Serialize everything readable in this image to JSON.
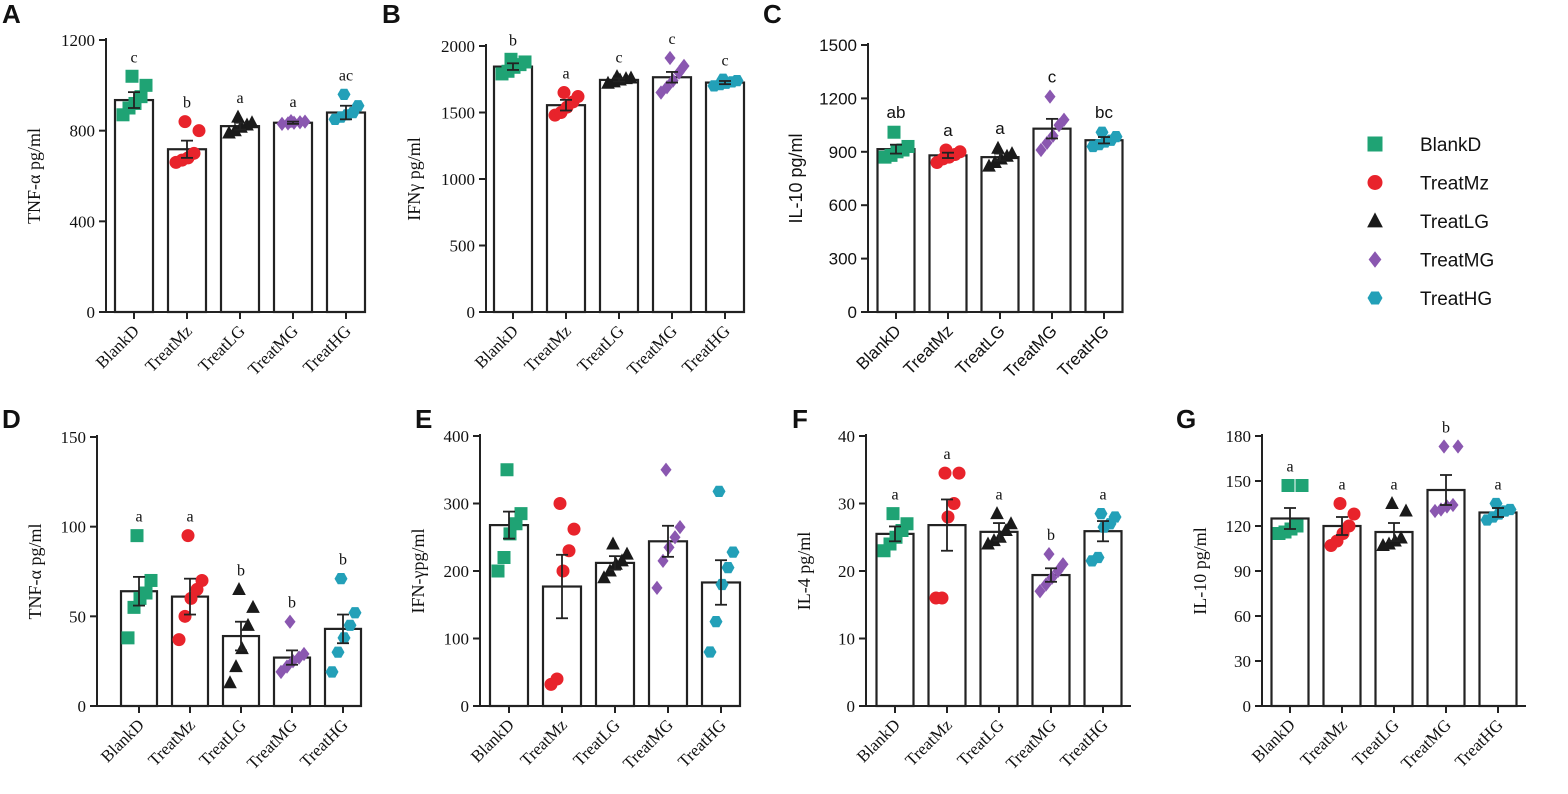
{
  "colors": {
    "BlankD": "#1fa374",
    "TreatMz": "#e8232b",
    "TreatLG": "#1a1a1a",
    "TreatMG": "#8a57b0",
    "TreatHG": "#23a0b8"
  },
  "legend": [
    {
      "label": "BlankD",
      "marker": "square"
    },
    {
      "label": "TreatMz",
      "marker": "circle"
    },
    {
      "label": "TreatLG",
      "marker": "triangle"
    },
    {
      "label": "TreatMG",
      "marker": "diamond"
    },
    {
      "label": "TreatHG",
      "marker": "hexagon"
    }
  ],
  "chart_data": [
    {
      "panel": "A",
      "type": "bar",
      "font": "serif",
      "ylabel": "TNF-α pg/ml",
      "ylim": [
        0,
        1200
      ],
      "yticks": [
        0,
        400,
        800,
        1200
      ],
      "categories": [
        "BlankD",
        "TreatMz",
        "TreatLG",
        "TreatMG",
        "TreatHG"
      ],
      "values": [
        935,
        718,
        820,
        835,
        880
      ],
      "errors": [
        35,
        38,
        15,
        5,
        30
      ],
      "letters": [
        "c",
        "b",
        "a",
        "a",
        "ac"
      ],
      "points": [
        [
          870,
          900,
          920,
          950,
          1000,
          1040
        ],
        [
          660,
          670,
          680,
          700,
          800,
          840
        ],
        [
          790,
          800,
          815,
          825,
          835,
          860
        ],
        [
          830,
          832,
          835,
          837,
          840,
          842
        ],
        [
          850,
          860,
          870,
          880,
          910,
          960
        ]
      ]
    },
    {
      "panel": "B",
      "type": "bar",
      "font": "serif",
      "ylabel": "IFNγ pg/ml",
      "ylim": [
        0,
        2000
      ],
      "yticks": [
        0,
        500,
        1000,
        1500,
        2000
      ],
      "categories": [
        "BlankD",
        "TreatMz",
        "TreatLG",
        "TreatMG",
        "TreatHG"
      ],
      "values": [
        1845,
        1555,
        1745,
        1765,
        1725
      ],
      "errors": [
        25,
        40,
        12,
        40,
        12
      ],
      "letters": [
        "b",
        "a",
        "c",
        "c",
        "c"
      ],
      "points": [
        [
          1790,
          1810,
          1840,
          1860,
          1880,
          1900
        ],
        [
          1480,
          1500,
          1540,
          1580,
          1620,
          1650
        ],
        [
          1720,
          1730,
          1745,
          1755,
          1760,
          1770
        ],
        [
          1650,
          1690,
          1740,
          1800,
          1850,
          1910
        ],
        [
          1700,
          1710,
          1720,
          1730,
          1740,
          1750
        ]
      ]
    },
    {
      "panel": "C",
      "type": "bar",
      "font": "sans",
      "ylabel": "IL-10 pg/ml",
      "ylim": [
        0,
        1500
      ],
      "yticks": [
        0,
        300,
        600,
        900,
        1200,
        1500
      ],
      "categories": [
        "BlankD",
        "TreatMz",
        "TreatLG",
        "TreatMG",
        "TreatHG"
      ],
      "values": [
        915,
        880,
        870,
        1030,
        965
      ],
      "errors": [
        25,
        15,
        20,
        55,
        18
      ],
      "letters": [
        "ab",
        "a",
        "a",
        "c",
        "bc"
      ],
      "points": [
        [
          870,
          880,
          900,
          910,
          930,
          1010
        ],
        [
          840,
          860,
          870,
          885,
          900,
          910
        ],
        [
          820,
          840,
          860,
          875,
          890,
          920
        ],
        [
          910,
          950,
          990,
          1050,
          1080,
          1210
        ],
        [
          930,
          940,
          955,
          965,
          985,
          1010
        ]
      ]
    },
    {
      "panel": "D",
      "type": "bar",
      "font": "serif",
      "ylabel": "TNF-α pg/ml",
      "ylim": [
        0,
        150
      ],
      "yticks": [
        0,
        50,
        100,
        150
      ],
      "categories": [
        "BlankD",
        "TreatMz",
        "TreatLG",
        "TreatMG",
        "TreatHG"
      ],
      "values": [
        64,
        61,
        39,
        27,
        43
      ],
      "errors": [
        8,
        10,
        8,
        4,
        8
      ],
      "letters": [
        "a",
        "a",
        "b",
        "b",
        "b"
      ],
      "points": [
        [
          38,
          55,
          60,
          63,
          70,
          95
        ],
        [
          37,
          50,
          60,
          65,
          70,
          95
        ],
        [
          13,
          22,
          32,
          45,
          55,
          65
        ],
        [
          19,
          22,
          25,
          27,
          29,
          47
        ],
        [
          19,
          30,
          38,
          45,
          52,
          71
        ]
      ]
    },
    {
      "panel": "E",
      "type": "bar",
      "font": "serif",
      "ylabel": "IFN-γpg/ml",
      "ylim": [
        0,
        400
      ],
      "yticks": [
        0,
        100,
        200,
        300,
        400
      ],
      "categories": [
        "BlankD",
        "TreatMz",
        "TreatLG",
        "TreatMG",
        "TreatHG"
      ],
      "values": [
        268,
        177,
        212,
        244,
        183
      ],
      "errors": [
        20,
        47,
        10,
        23,
        33
      ],
      "letters": [
        "",
        "",
        "",
        "",
        ""
      ],
      "points": [
        [
          200,
          220,
          255,
          270,
          285,
          350
        ],
        [
          32,
          40,
          200,
          230,
          262,
          300
        ],
        [
          190,
          200,
          210,
          215,
          225,
          240
        ],
        [
          175,
          215,
          235,
          250,
          265,
          350
        ],
        [
          80,
          125,
          180,
          205,
          228,
          318
        ]
      ]
    },
    {
      "panel": "F",
      "type": "bar",
      "font": "serif",
      "ylabel": "IL-4 pg/ml",
      "ylim": [
        0,
        40
      ],
      "yticks": [
        0,
        10,
        20,
        30,
        40
      ],
      "categories": [
        "BlankD",
        "TreatMz",
        "TreatLG",
        "TreatMG",
        "TreatHG"
      ],
      "values": [
        25.5,
        26.8,
        25.8,
        19.4,
        25.9
      ],
      "errors": [
        1.1,
        3.8,
        1.3,
        1.0,
        1.5
      ],
      "letters": [
        "a",
        "a",
        "a",
        "b",
        "a"
      ],
      "points": [
        [
          23,
          24,
          25,
          26,
          27,
          28.5
        ],
        [
          16,
          16,
          28,
          30,
          34.5,
          34.5
        ],
        [
          24,
          24.5,
          25,
          26,
          27,
          28.5
        ],
        [
          17,
          18,
          19,
          20,
          21,
          22.5
        ],
        [
          21.5,
          22,
          26.5,
          27,
          28,
          28.5
        ]
      ]
    },
    {
      "panel": "G",
      "type": "bar",
      "font": "serif",
      "ylabel": "IL-10 pg/ml",
      "ylim": [
        0,
        180
      ],
      "yticks": [
        0,
        30,
        60,
        90,
        120,
        150,
        180
      ],
      "categories": [
        "BlankD",
        "TreatMz",
        "TreatLG",
        "TreatMG",
        "TreatHG"
      ],
      "values": [
        125,
        120,
        116,
        144,
        129
      ],
      "errors": [
        7,
        6,
        6,
        10,
        3
      ],
      "letters": [
        "a",
        "a",
        "a",
        "b",
        "a"
      ],
      "points": [
        [
          115,
          116,
          118,
          120,
          147,
          147
        ],
        [
          107,
          110,
          115,
          120,
          128,
          135
        ],
        [
          107,
          108,
          110,
          112,
          130,
          135
        ],
        [
          130,
          131,
          133,
          134,
          173,
          173
        ],
        [
          124,
          126,
          128,
          130,
          131,
          135
        ]
      ]
    }
  ]
}
